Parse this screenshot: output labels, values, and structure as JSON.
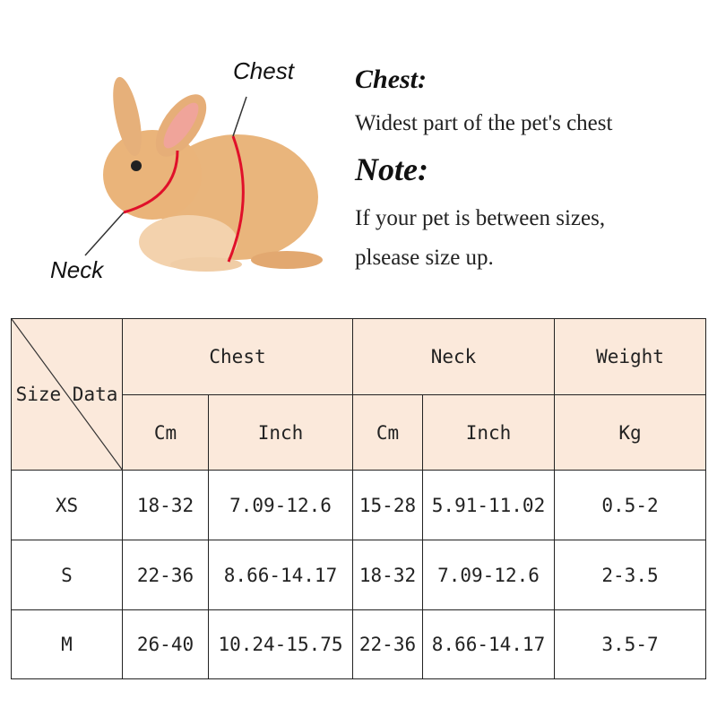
{
  "diagram": {
    "chest_label": "Chest",
    "neck_label": "Neck",
    "strap_color": "#e0102a"
  },
  "info": {
    "chest_heading": "Chest:",
    "chest_text": "Widest part of the pet's chest",
    "note_heading": "Note:",
    "note_line1": "If your pet is between sizes,",
    "note_line2": "plsease size up."
  },
  "table": {
    "corner": "Size Data",
    "groups": [
      "Chest",
      "Neck",
      "Weight"
    ],
    "units": [
      "Cm",
      "Inch",
      "Cm",
      "Inch",
      "Kg"
    ],
    "header_color": "#fbe9db",
    "rows": [
      [
        "XS",
        "18-32",
        "7.09-12.6",
        "15-28",
        "5.91-11.02",
        "0.5-2"
      ],
      [
        "S",
        "22-36",
        "8.66-14.17",
        "18-32",
        "7.09-12.6",
        "2-3.5"
      ],
      [
        "M",
        "26-40",
        "10.24-15.75",
        "22-36",
        "8.66-14.17",
        "3.5-7"
      ]
    ]
  }
}
